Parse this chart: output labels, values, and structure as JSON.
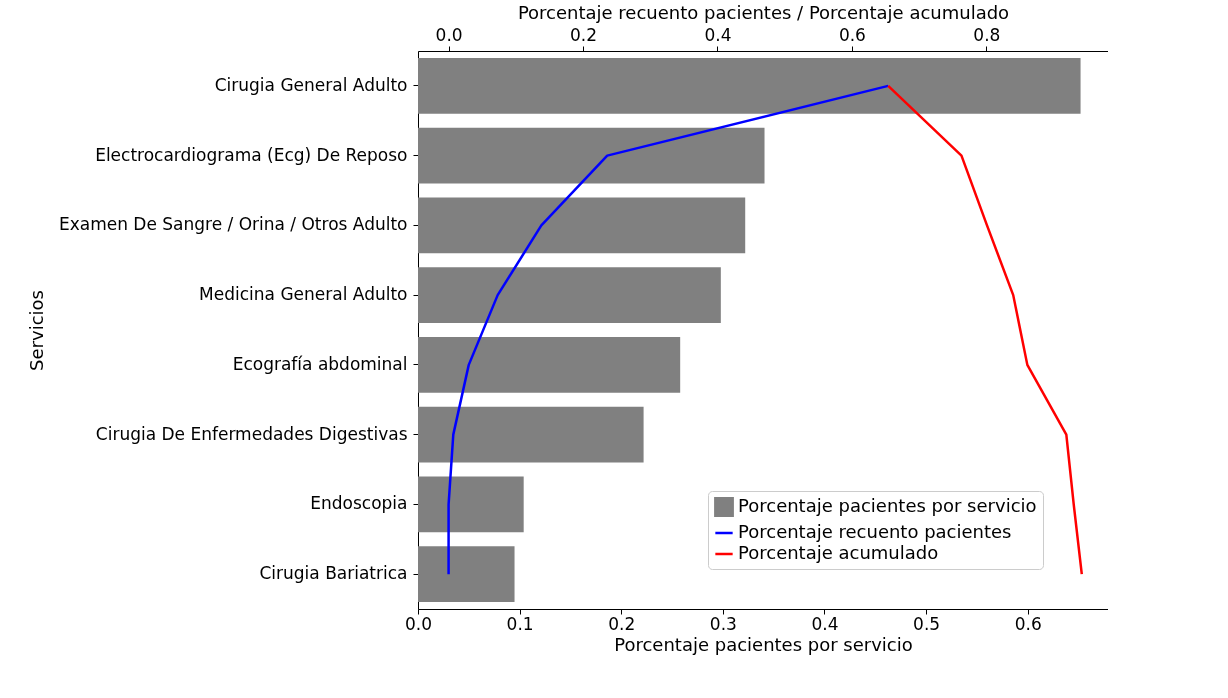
{
  "chart_data": {
    "type": "bar",
    "orientation": "horizontal",
    "categories": [
      "Cirugia General Adulto",
      "Electrocardiograma (Ecg) De Reposo",
      "Examen De Sangre / Orina / Otros Adulto",
      "Medicina General Adulto",
      "Ecografía abdominal",
      "Cirugia De Enfermedades Digestivas",
      "Endoscopia",
      "Cirugia Bariatrica"
    ],
    "series": [
      {
        "name": "Porcentaje pacientes por servicio",
        "color": "#808080",
        "values": [
          0.652,
          0.341,
          0.322,
          0.298,
          0.258,
          0.222,
          0.104,
          0.095
        ]
      },
      {
        "name": "Porcentaje recuento pacientes",
        "type": "line",
        "axis": "x2",
        "color": "#0000ff",
        "values": [
          0.654,
          0.236,
          0.138,
          0.073,
          0.03,
          0.007,
          0.0,
          0.0
        ]
      },
      {
        "name": "Porcentaje acumulado",
        "type": "line",
        "axis": "x2",
        "color": "#ff0000",
        "values": [
          0.654,
          0.763,
          0.801,
          0.84,
          0.861,
          0.919,
          0.93,
          0.942
        ]
      }
    ],
    "xlabel": "Porcentaje pacientes por servicio",
    "x2label": "Porcentaje recuento pacientes / Porcentaje acumulado",
    "ylabel": "Servicios",
    "xlim": [
      0,
      0.679
    ],
    "xticks": [
      {
        "value": 0,
        "label": "0.0"
      },
      0.1,
      0.2,
      0.3,
      0.4,
      0.5,
      0.6
    ],
    "x2lim": [
      -0.0455,
      0.981
    ],
    "x2ticks": [
      {
        "value": 0,
        "label": "0.0"
      },
      0.2,
      0.4,
      0.6,
      0.8
    ],
    "legend": "bottom right",
    "grid": false
  }
}
